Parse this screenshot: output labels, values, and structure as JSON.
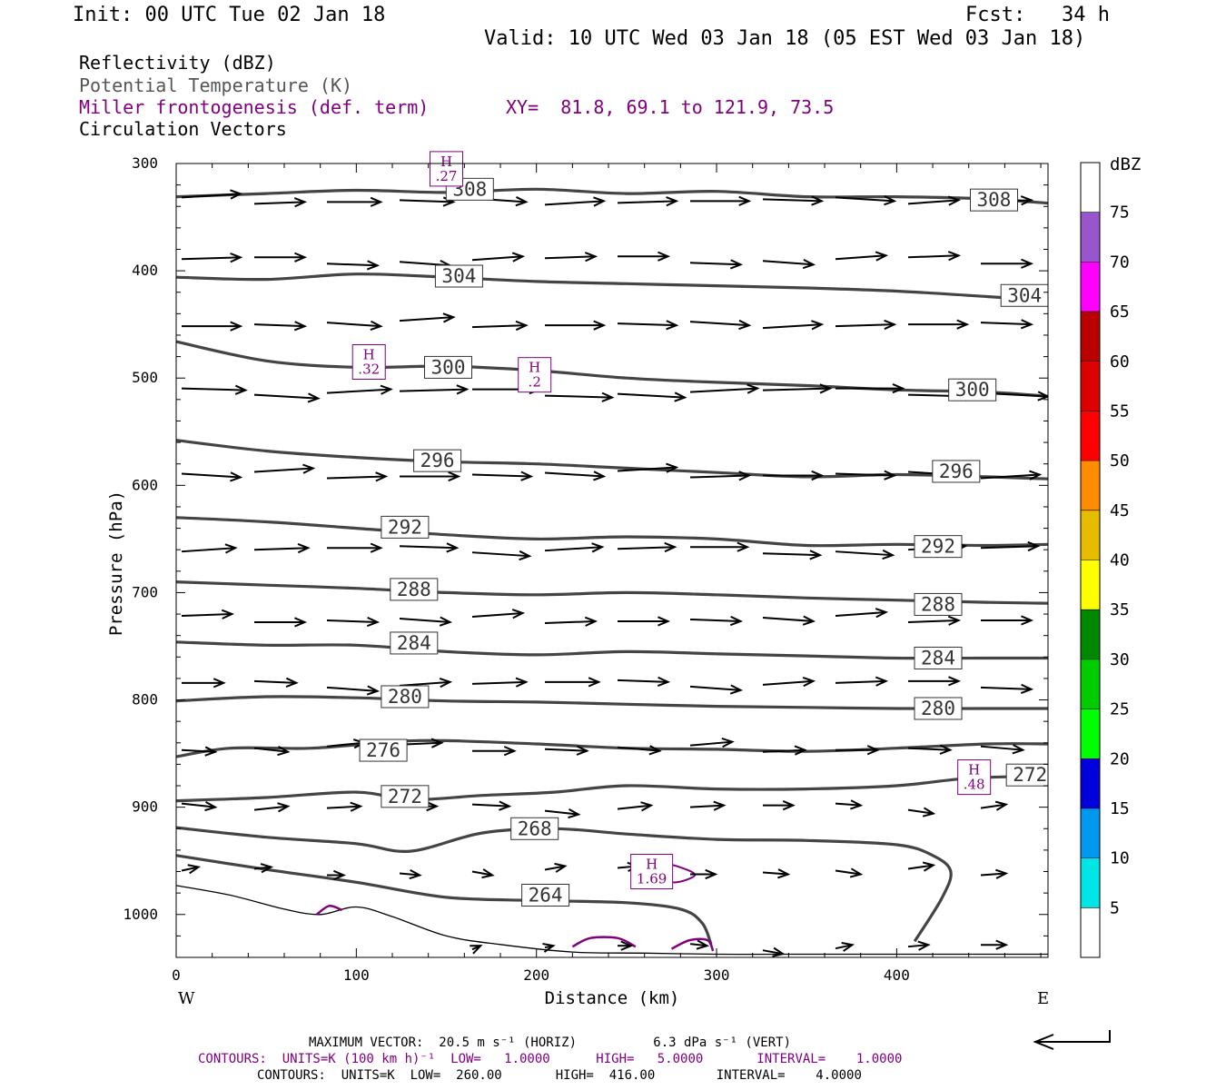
{
  "header": {
    "init": "Init: 00 UTC Tue 02 Jan 18",
    "fcst": "Fcst:   34 h",
    "valid": "Valid: 10 UTC Wed 03 Jan 18 (05 EST Wed 03 Jan 18)"
  },
  "legend": {
    "reflectivity": "Reflectivity (dBZ)",
    "theta": "Potential Temperature (K)",
    "frontogenesis": "Miller frontogenesis (def. term)",
    "xy": "XY=  81.8, 69.1 to 121.9, 73.5",
    "vectors": "Circulation Vectors"
  },
  "colors": {
    "theta_line": "#444444",
    "fronto": "#800080",
    "vector": "#000000"
  },
  "footer": {
    "max_vector": "MAXIMUM VECTOR:  20.5 m s⁻¹ (HORIZ)          6.3 dPa s⁻¹ (VERT)",
    "contours_fronto": "CONTOURS:  UNITS=K (100 km h)⁻¹  LOW=   1.0000      HIGH=   5.0000       INTERVAL=    1.0000",
    "contours_theta": "CONTOURS:  UNITS=K  LOW=  260.00       HIGH=  416.00        INTERVAL=    4.0000"
  },
  "chart_data": {
    "type": "cross-section",
    "xlabel": "Distance (km)",
    "ylabel": "Pressure (hPa)",
    "x_ticks": [
      "0",
      "100",
      "200",
      "300",
      "400"
    ],
    "y_ticks": [
      "300",
      "400",
      "500",
      "600",
      "700",
      "800",
      "900",
      "1000"
    ],
    "xlim": [
      0,
      484
    ],
    "ylim": [
      1040,
      300
    ],
    "y_scale": "linear",
    "left_end": "W",
    "right_end": "E",
    "colorbar": {
      "title": "dBZ",
      "ticks": [
        "5",
        "10",
        "15",
        "20",
        "25",
        "30",
        "35",
        "40",
        "45",
        "50",
        "55",
        "60",
        "65",
        "70",
        "75"
      ],
      "colors": [
        "#ffffff",
        "#00e5e5",
        "#0099ee",
        "#0000dd",
        "#00ff00",
        "#00cc00",
        "#008800",
        "#ffff00",
        "#e5bc00",
        "#ff8c00",
        "#ff0000",
        "#dd0000",
        "#bb0000",
        "#ff00ff",
        "#9955cc",
        "#ffffff"
      ]
    },
    "theta_contours": [
      {
        "label": "308",
        "points": [
          [
            0,
            331
          ],
          [
            50,
            328
          ],
          [
            100,
            325
          ],
          [
            150,
            327
          ],
          [
            200,
            324
          ],
          [
            250,
            328
          ],
          [
            300,
            326
          ],
          [
            350,
            331
          ],
          [
            400,
            331
          ],
          [
            450,
            333
          ],
          [
            484,
            337
          ]
        ],
        "labels_at": [
          [
            163,
            324
          ],
          [
            454,
            334
          ]
        ]
      },
      {
        "label": "304",
        "points": [
          [
            0,
            406
          ],
          [
            50,
            408
          ],
          [
            100,
            403
          ],
          [
            150,
            406
          ],
          [
            200,
            410
          ],
          [
            250,
            412
          ],
          [
            300,
            414
          ],
          [
            350,
            416
          ],
          [
            400,
            419
          ],
          [
            450,
            424
          ],
          [
            484,
            428
          ]
        ],
        "labels_at": [
          [
            157,
            405
          ],
          [
            471,
            423
          ]
        ]
      },
      {
        "label": "300",
        "points": [
          [
            0,
            466
          ],
          [
            50,
            484
          ],
          [
            100,
            490
          ],
          [
            150,
            489
          ],
          [
            200,
            493
          ],
          [
            250,
            500
          ],
          [
            300,
            504
          ],
          [
            350,
            507
          ],
          [
            400,
            511
          ],
          [
            450,
            513
          ],
          [
            484,
            517
          ]
        ],
        "labels_at": [
          [
            151,
            490
          ],
          [
            442,
            511
          ]
        ]
      },
      {
        "label": "296",
        "points": [
          [
            0,
            558
          ],
          [
            50,
            568
          ],
          [
            100,
            574
          ],
          [
            150,
            578
          ],
          [
            200,
            580
          ],
          [
            250,
            584
          ],
          [
            300,
            588
          ],
          [
            350,
            592
          ],
          [
            400,
            590
          ],
          [
            450,
            592
          ],
          [
            484,
            594
          ]
        ],
        "labels_at": [
          [
            145,
            577
          ],
          [
            433,
            587
          ]
        ]
      },
      {
        "label": "292",
        "points": [
          [
            0,
            630
          ],
          [
            50,
            634
          ],
          [
            100,
            640
          ],
          [
            150,
            646
          ],
          [
            200,
            650
          ],
          [
            250,
            648
          ],
          [
            300,
            650
          ],
          [
            350,
            656
          ],
          [
            400,
            655
          ],
          [
            450,
            656
          ],
          [
            484,
            655
          ]
        ],
        "labels_at": [
          [
            127,
            639
          ],
          [
            423,
            657
          ]
        ]
      },
      {
        "label": "288",
        "points": [
          [
            0,
            690
          ],
          [
            50,
            693
          ],
          [
            100,
            696
          ],
          [
            150,
            700
          ],
          [
            200,
            702
          ],
          [
            250,
            700
          ],
          [
            300,
            702
          ],
          [
            350,
            705
          ],
          [
            400,
            707
          ],
          [
            450,
            709
          ],
          [
            484,
            710
          ]
        ],
        "labels_at": [
          [
            132,
            697
          ],
          [
            423,
            711
          ]
        ]
      },
      {
        "label": "284",
        "points": [
          [
            0,
            746
          ],
          [
            50,
            749
          ],
          [
            100,
            749
          ],
          [
            150,
            755
          ],
          [
            200,
            758
          ],
          [
            250,
            755
          ],
          [
            300,
            757
          ],
          [
            350,
            759
          ],
          [
            400,
            761
          ],
          [
            450,
            761
          ],
          [
            484,
            761
          ]
        ],
        "labels_at": [
          [
            132,
            747
          ],
          [
            423,
            761
          ]
        ]
      },
      {
        "label": "280",
        "points": [
          [
            0,
            801
          ],
          [
            50,
            797
          ],
          [
            100,
            798
          ],
          [
            150,
            801
          ],
          [
            200,
            802
          ],
          [
            250,
            804
          ],
          [
            300,
            806
          ],
          [
            350,
            807
          ],
          [
            400,
            808
          ],
          [
            450,
            808
          ],
          [
            484,
            808
          ]
        ],
        "labels_at": [
          [
            127,
            797
          ],
          [
            423,
            808
          ]
        ]
      },
      {
        "label": "276",
        "points": [
          [
            0,
            853
          ],
          [
            30,
            845
          ],
          [
            75,
            845
          ],
          [
            120,
            839
          ],
          [
            150,
            838
          ],
          [
            200,
            841
          ],
          [
            250,
            845
          ],
          [
            300,
            846
          ],
          [
            350,
            848
          ],
          [
            400,
            845
          ],
          [
            450,
            841
          ],
          [
            484,
            841
          ]
        ],
        "labels_at": [
          [
            115,
            847
          ]
        ]
      },
      {
        "label": "272",
        "points": [
          [
            0,
            894
          ],
          [
            50,
            891
          ],
          [
            100,
            886
          ],
          [
            130,
            893
          ],
          [
            170,
            889
          ],
          [
            210,
            886
          ],
          [
            250,
            880
          ],
          [
            300,
            883
          ],
          [
            350,
            883
          ],
          [
            400,
            880
          ],
          [
            440,
            873
          ],
          [
            484,
            871
          ]
        ],
        "labels_at": [
          [
            127,
            890
          ],
          [
            474,
            870
          ]
        ]
      },
      {
        "label": "268",
        "points": [
          [
            0,
            919
          ],
          [
            50,
            928
          ],
          [
            100,
            934
          ],
          [
            130,
            941
          ],
          [
            170,
            924
          ],
          [
            210,
            920
          ],
          [
            250,
            925
          ],
          [
            300,
            930
          ],
          [
            350,
            931
          ],
          [
            400,
            935
          ],
          [
            420,
            945
          ],
          [
            430,
            960
          ],
          [
            425,
            985
          ],
          [
            410,
            1025
          ]
        ],
        "labels_at": [
          [
            199,
            920
          ]
        ]
      },
      {
        "label": "264",
        "points": [
          [
            0,
            945
          ],
          [
            50,
            958
          ],
          [
            100,
            970
          ],
          [
            150,
            984
          ],
          [
            200,
            987
          ],
          [
            250,
            989
          ],
          [
            280,
            995
          ],
          [
            292,
            1008
          ],
          [
            297,
            1028
          ]
        ],
        "labels_at": [
          [
            205,
            982
          ]
        ]
      }
    ],
    "terrain": {
      "points": [
        [
          0,
          973
        ],
        [
          30,
          982
        ],
        [
          60,
          995
        ],
        [
          80,
          1000
        ],
        [
          100,
          993
        ],
        [
          120,
          1002
        ],
        [
          150,
          1020
        ],
        [
          180,
          1028
        ],
        [
          220,
          1035
        ],
        [
          260,
          1036
        ],
        [
          300,
          1037
        ],
        [
          340,
          1037
        ],
        [
          400,
          1037
        ],
        [
          484,
          1037
        ]
      ]
    },
    "fronto_maxima": [
      {
        "label": "H",
        "value": ".27",
        "x": 150,
        "p": 305
      },
      {
        "label": "H",
        "value": ".32",
        "x": 107,
        "p": 485
      },
      {
        "label": "H",
        "value": ".2",
        "x": 199,
        "p": 497
      },
      {
        "label": "H",
        "value": ".48",
        "x": 443,
        "p": 872
      },
      {
        "label": "H",
        "value": "1.69",
        "x": 264,
        "p": 960
      }
    ],
    "vector_rows": [
      {
        "p": 335,
        "u": [
          35,
          30,
          32,
          32,
          32,
          35,
          35,
          35,
          35,
          35,
          30,
          30
        ]
      },
      {
        "p": 390,
        "u": [
          35,
          30,
          30,
          30,
          30,
          30,
          30,
          30,
          30,
          30,
          30,
          30
        ]
      },
      {
        "p": 450,
        "u": [
          35,
          30,
          32,
          32,
          32,
          35,
          35,
          35,
          35,
          35,
          35,
          30
        ]
      },
      {
        "p": 513,
        "u": [
          38,
          38,
          38,
          40,
          40,
          40,
          40,
          40,
          40,
          40,
          40,
          40
        ]
      },
      {
        "p": 590,
        "u": [
          35,
          35,
          35,
          35,
          35,
          35,
          35,
          35,
          35,
          35,
          35,
          35
        ]
      },
      {
        "p": 660,
        "u": [
          32,
          32,
          32,
          34,
          34,
          34,
          34,
          34,
          34,
          34,
          34,
          34
        ]
      },
      {
        "p": 725,
        "u": [
          30,
          30,
          30,
          30,
          30,
          30,
          30,
          30,
          30,
          30,
          30,
          30
        ]
      },
      {
        "p": 785,
        "u": [
          25,
          25,
          30,
          30,
          32,
          32,
          30,
          30,
          30,
          30,
          30,
          30
        ]
      },
      {
        "p": 845,
        "u": [
          20,
          20,
          22,
          25,
          25,
          25,
          25,
          25,
          25,
          25,
          25,
          25
        ]
      },
      {
        "p": 900,
        "u": [
          20,
          20,
          20,
          22,
          22,
          20,
          20,
          20,
          18,
          15,
          15,
          15
        ]
      },
      {
        "p": 960,
        "u": [
          10,
          10,
          10,
          12,
          12,
          12,
          12,
          15,
          15,
          15,
          15,
          15
        ]
      },
      {
        "p": 1030,
        "u": [
          0,
          0,
          0,
          0,
          5,
          5,
          8,
          10,
          12,
          10,
          12,
          15
        ]
      }
    ]
  }
}
